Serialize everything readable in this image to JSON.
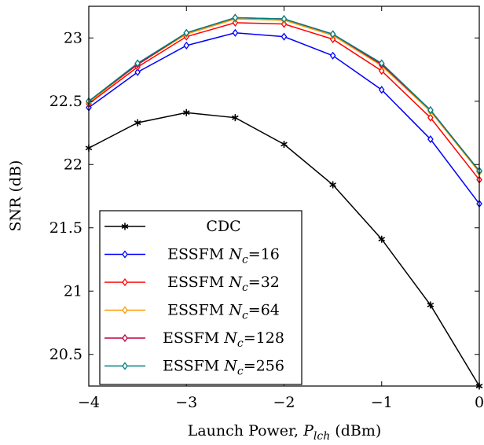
{
  "chart_data": {
    "type": "line",
    "xlabel": "Launch Power, ",
    "xlabel_symbol": "P",
    "xlabel_subscript": "lch",
    "xlabel_unit": " (dBm)",
    "ylabel": "SNR (dB)",
    "xlim": [
      -4,
      0
    ],
    "ylim": [
      20.25,
      23.25
    ],
    "grid": false,
    "legend_position": "bottom-left",
    "x_ticks": [
      -4,
      -3,
      -2,
      -1,
      0
    ],
    "x_tick_labels": [
      "−4",
      "−3",
      "−2",
      "−1",
      "0"
    ],
    "y_ticks": [
      20.5,
      21,
      21.5,
      22,
      22.5,
      23
    ],
    "y_tick_labels": [
      "20.5",
      "21",
      "21.5",
      "22",
      "22.5",
      "23"
    ],
    "x": [
      -4,
      -3.5,
      -3,
      -2.5,
      -2,
      -1.5,
      -1,
      -0.5,
      0
    ],
    "series": [
      {
        "name": "CDC",
        "legend_main": "CDC",
        "legend_sub": "",
        "legend_tail": "",
        "color": "#000000",
        "marker": "star",
        "values": [
          22.13,
          22.33,
          22.41,
          22.37,
          22.16,
          21.84,
          21.41,
          20.89,
          20.25
        ]
      },
      {
        "name": "ESSFM Nc=16",
        "legend_main": "ESSFM N",
        "legend_sub": "c",
        "legend_tail": "=16",
        "color": "#0000ff",
        "marker": "diamond",
        "values": [
          22.45,
          22.73,
          22.94,
          23.04,
          23.01,
          22.86,
          22.59,
          22.2,
          21.69
        ]
      },
      {
        "name": "ESSFM Nc=32",
        "legend_main": "ESSFM N",
        "legend_sub": "c",
        "legend_tail": "=32",
        "color": "#ff0000",
        "marker": "diamond",
        "values": [
          22.48,
          22.77,
          23.01,
          23.12,
          23.11,
          22.99,
          22.74,
          22.37,
          21.88
        ]
      },
      {
        "name": "ESSFM Nc=64",
        "legend_main": "ESSFM N",
        "legend_sub": "c",
        "legend_tail": "=64",
        "color": "#ff9900",
        "marker": "diamond",
        "values": [
          22.49,
          22.79,
          23.03,
          23.15,
          23.14,
          23.02,
          22.78,
          22.42,
          21.94
        ]
      },
      {
        "name": "ESSFM Nc=128",
        "legend_main": "ESSFM N",
        "legend_sub": "c",
        "legend_tail": "=128",
        "color": "#bf0040",
        "marker": "diamond",
        "values": [
          22.5,
          22.79,
          23.04,
          23.16,
          23.15,
          23.03,
          22.79,
          22.43,
          21.95
        ]
      },
      {
        "name": "ESSFM Nc=256",
        "legend_main": "ESSFM N",
        "legend_sub": "c",
        "legend_tail": "=256",
        "color": "#008080",
        "marker": "diamond",
        "values": [
          22.5,
          22.8,
          23.04,
          23.16,
          23.15,
          23.03,
          22.8,
          22.43,
          21.95
        ]
      }
    ]
  }
}
